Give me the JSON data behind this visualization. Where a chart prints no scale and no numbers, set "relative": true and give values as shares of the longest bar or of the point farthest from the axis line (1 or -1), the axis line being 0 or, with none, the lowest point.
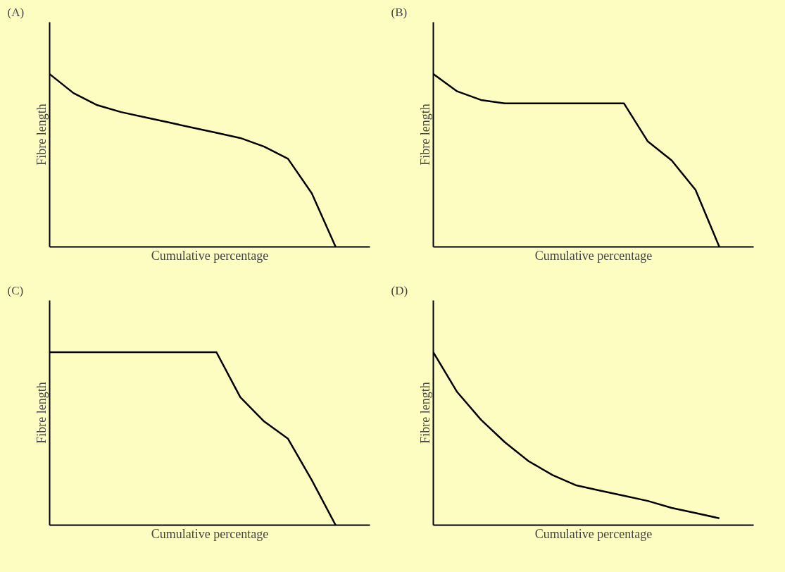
{
  "chart_data": [
    {
      "type": "line",
      "title": "(A)",
      "xlabel": "Cumulative percentage",
      "ylabel": "Fibre length",
      "relative": true,
      "categories": [
        null,
        null,
        null,
        null,
        null,
        null,
        null,
        null,
        null,
        null,
        null,
        null,
        null
      ],
      "series": [
        {
          "color": "#000000",
          "values": [
            1,
            0.89,
            0.82,
            0.78,
            0.75,
            0.72,
            0.69,
            0.66,
            0.63,
            0.58,
            0.51,
            0.31,
            0
          ]
        }
      ]
    },
    {
      "type": "line",
      "title": "(B)",
      "xlabel": "Cumulative percentage",
      "ylabel": "Fibre length",
      "relative": true,
      "categories": [
        null,
        null,
        null,
        null,
        null,
        null,
        null,
        null,
        null,
        null,
        null,
        null,
        null
      ],
      "series": [
        {
          "color": "#000000",
          "values": [
            1,
            0.9,
            0.85,
            0.83,
            0.83,
            0.83,
            0.83,
            0.83,
            0.83,
            0.61,
            0.5,
            0.33,
            0
          ]
        }
      ]
    },
    {
      "type": "line",
      "title": "(C)",
      "xlabel": "Cumulative percentage",
      "ylabel": "Fibre length",
      "relative": true,
      "categories": [
        null,
        null,
        null,
        null,
        null,
        null,
        null,
        null,
        null,
        null,
        null,
        null,
        null
      ],
      "series": [
        {
          "color": "#000000",
          "values": [
            1,
            1,
            1,
            1,
            1,
            1,
            1,
            1,
            0.74,
            0.6,
            0.5,
            0.26,
            0
          ]
        }
      ]
    },
    {
      "type": "line",
      "title": "(D)",
      "xlabel": "Cumulative percentage",
      "ylabel": "Fibre length",
      "relative": true,
      "categories": [
        null,
        null,
        null,
        null,
        null,
        null,
        null,
        null,
        null,
        null,
        null,
        null,
        null
      ],
      "series": [
        {
          "color": "#000000",
          "values": [
            1,
            0.77,
            0.61,
            0.48,
            0.37,
            0.29,
            0.23,
            0.2,
            0.17,
            0.14,
            0.1,
            0.07,
            0.04
          ]
        }
      ]
    }
  ]
}
